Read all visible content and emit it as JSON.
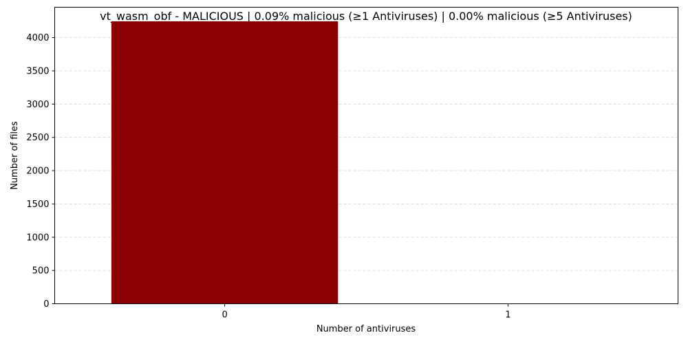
{
  "chart_data": {
    "type": "bar",
    "title": "vt_wasm_obf - MALICIOUS | 0.09% malicious (≥1 Antiviruses) | 0.00% malicious (≥5 Antiviruses)",
    "xlabel": "Number of antiviruses",
    "ylabel": "Number of files",
    "categories": [
      "0",
      "1"
    ],
    "values": [
      4244,
      4
    ],
    "ylim": [
      0,
      4456
    ],
    "yticks": [
      0,
      500,
      1000,
      1500,
      2000,
      2500,
      3000,
      3500,
      4000
    ],
    "grid": "y-dashed",
    "bar_color": "#8b0000"
  }
}
